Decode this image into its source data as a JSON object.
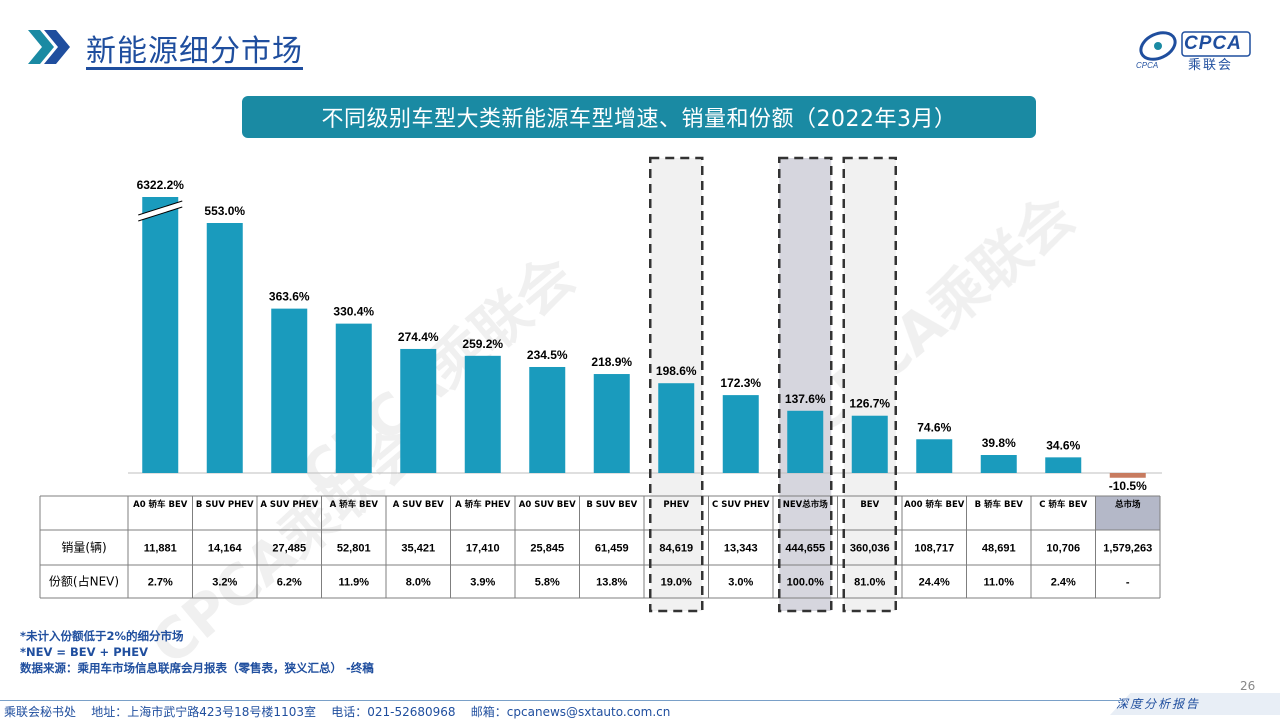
{
  "header": {
    "title": "新能源细分市场",
    "logo_text": "CPCA",
    "logo_sub": "乘联会",
    "logo_small": "CPCA"
  },
  "banner": "不同级别车型大类新能源车型增速、销量和份额（2022年3月）",
  "colors": {
    "bar": "#1a9bbd",
    "negative_bar": "#c77b5f",
    "highlight_light": "#f1f1f1",
    "highlight_dark": "#d6d6de",
    "title_blue": "#1f4e9e"
  },
  "chart_data": {
    "type": "bar",
    "categories": [
      "A0 轿车 BEV",
      "B SUV PHEV",
      "A SUV PHEV",
      "A 轿车 BEV",
      "A SUV BEV",
      "A 轿车 PHEV",
      "A0 SUV BEV",
      "B SUV BEV",
      "PHEV",
      "C SUV PHEV",
      "NEV总市场",
      "BEV",
      "A00 轿车 BEV",
      "B 轿车 BEV",
      "C 轿车 BEV",
      "总市场"
    ],
    "values": [
      6322.2,
      553.0,
      363.6,
      330.4,
      274.4,
      259.2,
      234.5,
      218.9,
      198.6,
      172.3,
      137.6,
      126.7,
      74.6,
      39.8,
      34.6,
      -10.5
    ],
    "value_labels": [
      "6322.2%",
      "553.0%",
      "363.6%",
      "330.4%",
      "274.4%",
      "259.2%",
      "234.5%",
      "218.9%",
      "198.6%",
      "172.3%",
      "137.6%",
      "126.7%",
      "74.6%",
      "39.8%",
      "34.6%",
      "-10.5%"
    ],
    "axis_break_on_first_bar": true,
    "highlighted": [
      "PHEV",
      "NEV总市场",
      "BEV"
    ],
    "table": {
      "row_headers": [
        "销量(辆)",
        "份额(占NEV)"
      ],
      "sales": [
        "11,881",
        "14,164",
        "27,485",
        "52,801",
        "35,421",
        "17,410",
        "25,845",
        "61,459",
        "84,619",
        "13,343",
        "444,655",
        "360,036",
        "108,717",
        "48,691",
        "10,706",
        "1,579,263"
      ],
      "share": [
        "2.7%",
        "3.2%",
        "6.2%",
        "11.9%",
        "8.0%",
        "3.9%",
        "5.8%",
        "13.8%",
        "19.0%",
        "3.0%",
        "100.0%",
        "81.0%",
        "24.4%",
        "11.0%",
        "2.4%",
        "-"
      ]
    }
  },
  "notes": [
    "*未计入份额低于2%的细分市场",
    "*NEV = BEV + PHEV",
    "数据来源：乘用车市场信息联席会月报表（零售表，狭义汇总）  -终稿"
  ],
  "footer": {
    "contact": "乘联会秘书处    地址：上海市武宁路423号18号楼1103室    电话：021-52680968    邮箱：cpcanews@sxtauto.com.cn",
    "tagline": "深度分析报告",
    "page_number": "26"
  },
  "watermark": "CPCA乘联会"
}
